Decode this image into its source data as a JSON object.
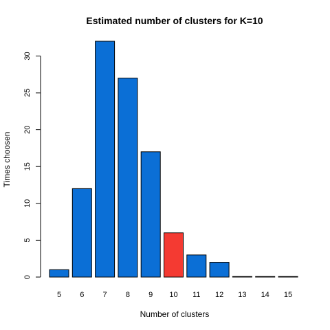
{
  "chart_data": {
    "type": "bar",
    "title": "Estimated number of clusters for K=10",
    "xlabel": "Number of clusters",
    "ylabel": "Times choosen",
    "categories": [
      "5",
      "6",
      "7",
      "8",
      "9",
      "10",
      "11",
      "12",
      "13",
      "14",
      "15"
    ],
    "values": [
      1,
      12,
      32,
      27,
      17,
      6,
      3,
      2,
      0,
      0,
      0
    ],
    "highlight_category": "10",
    "ylim": [
      0,
      32
    ],
    "yticks": [
      0,
      5,
      10,
      15,
      20,
      25,
      30
    ],
    "grid": false,
    "legend": "none",
    "colors": {
      "bar": "#0b6fd6",
      "highlight": "#f43a32",
      "stroke": "#000000"
    }
  }
}
